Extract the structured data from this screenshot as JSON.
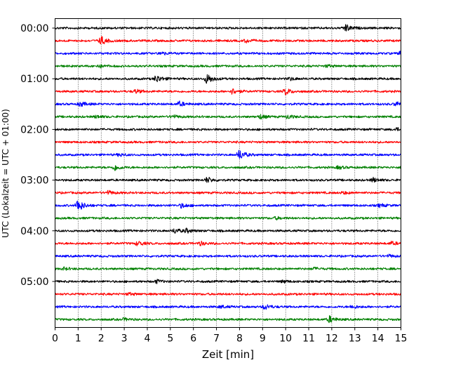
{
  "chart_data": {
    "type": "line",
    "xlabel": "Zeit  [min]",
    "ylabel": "UTC (Lokalzeit = UTC + 01:00)",
    "xlim": [
      0,
      15
    ],
    "x_ticks": [
      0,
      1,
      2,
      3,
      4,
      5,
      6,
      7,
      8,
      9,
      10,
      11,
      12,
      13,
      14,
      15
    ],
    "x_tick_labels": [
      "0",
      "1",
      "2",
      "3",
      "4",
      "5",
      "6",
      "7",
      "8",
      "9",
      "10",
      "11",
      "12",
      "13",
      "14",
      "15"
    ],
    "y_tick_labels": [
      "00:00",
      "01:00",
      "02:00",
      "03:00",
      "04:00",
      "05:00"
    ],
    "y_tick_trace_index": [
      0,
      4,
      8,
      12,
      16,
      20
    ],
    "grid": "vertical dotted",
    "color_cycle": [
      "#000000",
      "#ff0000",
      "#0000ff",
      "#008000"
    ],
    "traces": [
      {
        "start": "00:00",
        "events": [
          [
            12.6,
            1.6
          ]
        ]
      },
      {
        "start": "00:15",
        "events": [
          [
            2.0,
            1.8
          ],
          [
            8.3,
            0.7
          ]
        ]
      },
      {
        "start": "00:30",
        "events": [
          [
            4.6,
            0.6
          ],
          [
            15.0,
            1.0
          ]
        ]
      },
      {
        "start": "00:45",
        "events": [
          [
            1.9,
            0.6
          ],
          [
            11.8,
            0.5
          ]
        ]
      },
      {
        "start": "01:00",
        "events": [
          [
            4.4,
            1.6
          ],
          [
            6.6,
            2.2
          ],
          [
            10.2,
            0.6
          ]
        ]
      },
      {
        "start": "01:15",
        "events": [
          [
            3.5,
            0.8
          ],
          [
            7.7,
            1.2
          ],
          [
            10.0,
            1.4
          ]
        ]
      },
      {
        "start": "01:30",
        "events": [
          [
            1.1,
            1.0
          ],
          [
            5.4,
            1.0
          ],
          [
            14.8,
            0.9
          ]
        ]
      },
      {
        "start": "01:45",
        "events": [
          [
            1.8,
            0.6
          ],
          [
            5.1,
            0.7
          ],
          [
            8.9,
            0.9
          ],
          [
            10.1,
            0.8
          ]
        ]
      },
      {
        "start": "02:00",
        "events": [
          [
            14.8,
            0.6
          ]
        ]
      },
      {
        "start": "02:15",
        "events": []
      },
      {
        "start": "02:30",
        "events": [
          [
            2.8,
            0.6
          ],
          [
            8.0,
            2.2
          ]
        ]
      },
      {
        "start": "02:45",
        "events": [
          [
            2.6,
            1.2
          ],
          [
            12.3,
            0.6
          ]
        ]
      },
      {
        "start": "03:00",
        "events": [
          [
            6.6,
            1.2
          ],
          [
            13.8,
            0.9
          ]
        ]
      },
      {
        "start": "03:15",
        "events": [
          [
            2.3,
            0.8
          ],
          [
            12.5,
            0.5
          ]
        ]
      },
      {
        "start": "03:30",
        "events": [
          [
            1.0,
            2.8
          ],
          [
            5.5,
            1.0
          ],
          [
            14.1,
            0.7
          ]
        ]
      },
      {
        "start": "03:45",
        "events": [
          [
            9.6,
            0.5
          ]
        ]
      },
      {
        "start": "04:00",
        "events": [
          [
            5.2,
            1.0
          ],
          [
            5.7,
            0.8
          ]
        ]
      },
      {
        "start": "04:15",
        "events": [
          [
            3.6,
            1.0
          ],
          [
            6.3,
            0.8
          ],
          [
            14.6,
            0.7
          ]
        ]
      },
      {
        "start": "04:30",
        "events": [
          [
            14.5,
            0.5
          ]
        ]
      },
      {
        "start": "04:45",
        "events": [
          [
            0.4,
            0.5
          ],
          [
            11.2,
            0.5
          ]
        ]
      },
      {
        "start": "05:00",
        "events": [
          [
            4.4,
            0.7
          ],
          [
            9.9,
            0.5
          ]
        ]
      },
      {
        "start": "05:15",
        "events": [
          [
            3.2,
            0.5
          ]
        ]
      },
      {
        "start": "05:30",
        "events": [
          [
            7.2,
            0.6
          ],
          [
            9.1,
            1.2
          ],
          [
            12.9,
            0.7
          ]
        ]
      },
      {
        "start": "05:45",
        "events": [
          [
            3.0,
            0.5
          ],
          [
            11.9,
            1.4
          ]
        ]
      }
    ]
  }
}
